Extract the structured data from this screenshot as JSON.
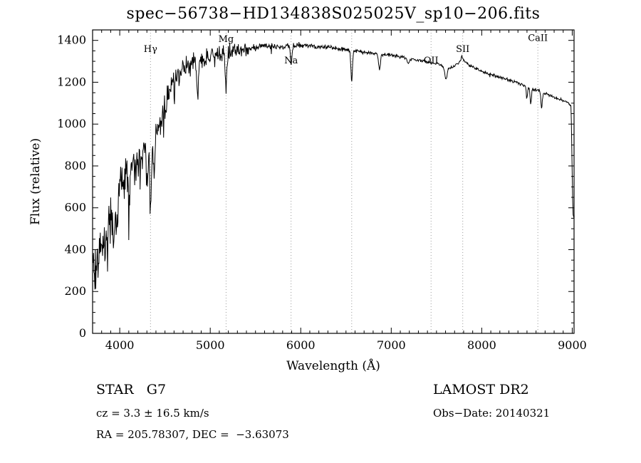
{
  "chart_data": {
    "type": "line",
    "title": "spec−56738−HD134838S025025V_sp10−206.fits",
    "xlabel": "Wavelength (Å)",
    "ylabel": "Flux (relative)",
    "xlim": [
      3700,
      9020
    ],
    "ylim": [
      0,
      1450
    ],
    "xticks": [
      4000,
      5000,
      6000,
      7000,
      8000,
      9000
    ],
    "yticks": [
      0,
      200,
      400,
      600,
      800,
      1000,
      1200,
      1400
    ],
    "x_minor_step": 100,
    "y_minor_step": 50,
    "grid": false,
    "legend": "none",
    "line_color": "#000000",
    "background": "#ffffff",
    "annotation_line_color": "#9a9a9a",
    "annotations": [
      {
        "label": "Hγ",
        "wavelength": 4340,
        "label_flux": 1345
      },
      {
        "label": "Mg",
        "wavelength": 5175,
        "label_flux": 1392
      },
      {
        "label": "Na",
        "wavelength": 5893,
        "label_flux": 1290
      },
      {
        "label": "",
        "wavelength": 6563,
        "label_flux": 1340
      },
      {
        "label": "OII",
        "wavelength": 7440,
        "label_flux": 1290
      },
      {
        "label": "SII",
        "wavelength": 7790,
        "label_flux": 1345
      },
      {
        "label": "CaII",
        "wavelength": 8620,
        "label_flux": 1398
      }
    ],
    "spectrum": {
      "sample_step": 5,
      "seed": 42,
      "continuum": [
        [
          3700,
          370
        ],
        [
          3750,
          340
        ],
        [
          3800,
          430
        ],
        [
          3850,
          460
        ],
        [
          3900,
          540
        ],
        [
          3950,
          610
        ],
        [
          4000,
          690
        ],
        [
          4060,
          770
        ],
        [
          4120,
          810
        ],
        [
          4180,
          840
        ],
        [
          4240,
          855
        ],
        [
          4300,
          870
        ],
        [
          4360,
          890
        ],
        [
          4420,
          960
        ],
        [
          4480,
          1060
        ],
        [
          4540,
          1140
        ],
        [
          4600,
          1205
        ],
        [
          4660,
          1240
        ],
        [
          4720,
          1268
        ],
        [
          4780,
          1285
        ],
        [
          4840,
          1292
        ],
        [
          4900,
          1308
        ],
        [
          4960,
          1320
        ],
        [
          5020,
          1330
        ],
        [
          5080,
          1338
        ],
        [
          5140,
          1340
        ],
        [
          5200,
          1346
        ],
        [
          5300,
          1354
        ],
        [
          5400,
          1360
        ],
        [
          5500,
          1368
        ],
        [
          5600,
          1376
        ],
        [
          5700,
          1373
        ],
        [
          5800,
          1370
        ],
        [
          5900,
          1372
        ],
        [
          6000,
          1378
        ],
        [
          6100,
          1374
        ],
        [
          6200,
          1371
        ],
        [
          6300,
          1367
        ],
        [
          6400,
          1361
        ],
        [
          6500,
          1356
        ],
        [
          6600,
          1350
        ],
        [
          6700,
          1344
        ],
        [
          6800,
          1338
        ],
        [
          6900,
          1333
        ],
        [
          7000,
          1331
        ],
        [
          7100,
          1322
        ],
        [
          7200,
          1314
        ],
        [
          7300,
          1306
        ],
        [
          7400,
          1297
        ],
        [
          7500,
          1288
        ],
        [
          7560,
          1278
        ],
        [
          7620,
          1268
        ],
        [
          7680,
          1272
        ],
        [
          7740,
          1288
        ],
        [
          7780,
          1322
        ],
        [
          7820,
          1296
        ],
        [
          7880,
          1278
        ],
        [
          7940,
          1265
        ],
        [
          8000,
          1252
        ],
        [
          8100,
          1238
        ],
        [
          8200,
          1224
        ],
        [
          8300,
          1210
        ],
        [
          8400,
          1196
        ],
        [
          8480,
          1182
        ],
        [
          8560,
          1168
        ],
        [
          8620,
          1160
        ],
        [
          8700,
          1145
        ],
        [
          8800,
          1128
        ],
        [
          8900,
          1112
        ],
        [
          8960,
          1100
        ],
        [
          8985,
          1088
        ],
        [
          8992,
          980
        ],
        [
          8998,
          800
        ],
        [
          9004,
          640
        ],
        [
          9010,
          565
        ],
        [
          9020,
          552
        ]
      ],
      "absorption_lines": [
        {
          "wavelength": 3933,
          "depth": 150,
          "sigma": 8
        },
        {
          "wavelength": 3968,
          "depth": 130,
          "sigma": 8
        },
        {
          "wavelength": 4101,
          "depth": 190,
          "sigma": 9
        },
        {
          "wavelength": 4227,
          "depth": 110,
          "sigma": 6
        },
        {
          "wavelength": 4305,
          "depth": 140,
          "sigma": 9
        },
        {
          "wavelength": 4340,
          "depth": 320,
          "sigma": 9
        },
        {
          "wavelength": 4383,
          "depth": 130,
          "sigma": 6
        },
        {
          "wavelength": 4861,
          "depth": 170,
          "sigma": 9
        },
        {
          "wavelength": 5175,
          "depth": 150,
          "sigma": 11
        },
        {
          "wavelength": 5893,
          "depth": 85,
          "sigma": 8
        },
        {
          "wavelength": 6563,
          "depth": 150,
          "sigma": 8
        },
        {
          "wavelength": 6870,
          "depth": 75,
          "sigma": 10
        },
        {
          "wavelength": 7190,
          "depth": 25,
          "sigma": 14
        },
        {
          "wavelength": 7605,
          "depth": 55,
          "sigma": 13
        },
        {
          "wavelength": 8498,
          "depth": 55,
          "sigma": 7
        },
        {
          "wavelength": 8542,
          "depth": 75,
          "sigma": 7
        },
        {
          "wavelength": 8662,
          "depth": 80,
          "sigma": 7
        }
      ],
      "noise_profile": [
        [
          3700,
          95
        ],
        [
          3850,
          88
        ],
        [
          4000,
          78
        ],
        [
          4150,
          68
        ],
        [
          4300,
          58
        ],
        [
          4450,
          48
        ],
        [
          4600,
          42
        ],
        [
          4800,
          36
        ],
        [
          5000,
          32
        ],
        [
          5200,
          28
        ],
        [
          5400,
          22
        ],
        [
          5500,
          16
        ],
        [
          5700,
          12
        ],
        [
          5900,
          10
        ],
        [
          6100,
          9
        ],
        [
          6400,
          8
        ],
        [
          6700,
          7
        ],
        [
          7000,
          6
        ],
        [
          7500,
          5.5
        ],
        [
          8000,
          5.5
        ],
        [
          8600,
          6
        ],
        [
          9020,
          5
        ]
      ]
    }
  },
  "footer": {
    "class_label": "STAR   G7",
    "survey": "LAMOST DR2",
    "cz": "cz = 3.3 ± 16.5 km/s",
    "obs_date": "Obs−Date: 20140321",
    "radec": "RA = 205.78307, DEC =  −3.63073"
  }
}
